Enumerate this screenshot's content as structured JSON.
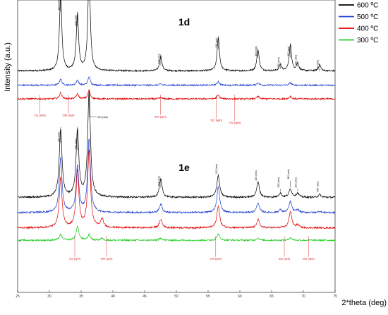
{
  "chart_data": {
    "type": "line",
    "xlabel": "2*theta (deg)",
    "ylabel": "Intensity (a.u.)",
    "xlim": [
      25,
      75
    ],
    "xticks": [
      25,
      30,
      35,
      40,
      45,
      50,
      55,
      60,
      65,
      70,
      75
    ],
    "legend": {
      "placement": "right",
      "entries": [
        {
          "name": "600 ºC",
          "color": "#000000"
        },
        {
          "name": "500 ºC",
          "color": "#1f3fd0"
        },
        {
          "name": "400 ºC",
          "color": "#e00000"
        },
        {
          "name": "300 ºC",
          "color": "#22cc22"
        }
      ]
    },
    "panels": [
      {
        "label": "1d",
        "peak_width": 0.22,
        "series": [
          {
            "name": "600 ºC",
            "color": "#000000",
            "baseline": 0.225,
            "peaks": [
              [
                31.77,
                0.62
              ],
              [
                34.42,
                0.45
              ],
              [
                36.25,
                0.8
              ],
              [
                47.54,
                0.12
              ],
              [
                56.6,
                0.27
              ],
              [
                62.86,
                0.17
              ],
              [
                66.38,
                0.05
              ],
              [
                67.96,
                0.21
              ],
              [
                69.1,
                0.06
              ],
              [
                72.56,
                0.05
              ]
            ]
          },
          {
            "name": "500 ºC",
            "color": "#1f3fd0",
            "baseline": 0.11,
            "peaks": [
              [
                31.77,
                0.05
              ],
              [
                34.42,
                0.04
              ],
              [
                36.25,
                0.07
              ],
              [
                47.54,
                0.01
              ],
              [
                56.6,
                0.03
              ],
              [
                62.86,
                0.02
              ],
              [
                67.96,
                0.02
              ]
            ]
          },
          {
            "name": "400 ºC",
            "color": "#e00000",
            "baseline": 0.0,
            "peaks": [
              [
                31.77,
                0.05
              ],
              [
                34.42,
                0.04
              ],
              [
                36.25,
                0.07
              ],
              [
                47.54,
                0.01
              ],
              [
                56.6,
                0.03
              ],
              [
                62.86,
                0.02
              ],
              [
                67.96,
                0.02
              ]
            ]
          }
        ],
        "annotations": [
          {
            "text": "100 (wiz)",
            "x": 31.77,
            "series": "600 ºC",
            "color": "#000000",
            "level": 0.7
          },
          {
            "text": "002 (wiz)",
            "x": 34.42,
            "series": "600 ºC",
            "color": "#000000",
            "level": 0.58
          },
          {
            "text": "101 (wiz)",
            "x": 36.25,
            "series": "600 ºC",
            "color": "#000000",
            "level": 0.88
          },
          {
            "text": "102 (wiz)",
            "x": 47.54,
            "series": "600 ºC",
            "color": "#000000",
            "level": 0.27
          },
          {
            "text": "110 (wiz)",
            "x": 56.6,
            "series": "600 ºC",
            "color": "#000000",
            "level": 0.4
          },
          {
            "text": "103 (wiz)",
            "x": 62.86,
            "series": "600 ºC",
            "color": "#000000",
            "level": 0.33
          },
          {
            "text": "200 (wiz)",
            "x": 66.38,
            "series": "600 ºC",
            "color": "#000000",
            "level": 0.24
          },
          {
            "text": "112 (wiz)",
            "x": 67.96,
            "series": "600 ºC",
            "color": "#000000",
            "level": 0.33
          },
          {
            "text": "201 (wiz)",
            "x": 69.1,
            "series": "600 ºC",
            "color": "#000000",
            "level": 0.26
          },
          {
            "text": "004 (wiz)",
            "x": 72.56,
            "series": "600 ºC",
            "color": "#000000",
            "level": 0.22
          },
          {
            "text": "111 (sph)",
            "x": 28.5,
            "series": "400 ºC",
            "color": "#d00000",
            "level": -0.14
          },
          {
            "text": "200 (sph)",
            "x": 33.0,
            "series": "400 ºC",
            "color": "#d00000",
            "level": -0.14
          },
          {
            "text": "220 (sph)",
            "x": 47.5,
            "series": "400 ºC",
            "color": "#d00000",
            "level": -0.15
          },
          {
            "text": "311 (sph)",
            "x": 56.3,
            "series": "400 ºC",
            "color": "#d00000",
            "level": -0.18
          },
          {
            "text": "222 (sph)",
            "x": 59.2,
            "series": "400 ºC",
            "color": "#d00000",
            "level": -0.2
          }
        ]
      },
      {
        "label": "1e",
        "peak_width": 0.26,
        "series": [
          {
            "name": "600 ºC",
            "color": "#000000",
            "baseline": 0.36,
            "peaks": [
              [
                31.77,
                0.49
              ],
              [
                34.42,
                0.48
              ],
              [
                36.25,
                0.76
              ],
              [
                47.54,
                0.13
              ],
              [
                56.6,
                0.16
              ],
              [
                62.86,
                0.11
              ],
              [
                66.38,
                0.03
              ],
              [
                67.96,
                0.06
              ],
              [
                69.1,
                0.03
              ],
              [
                72.56,
                0.02
              ]
            ]
          },
          {
            "name": "500 ºC",
            "color": "#1f3fd0",
            "baseline": 0.25,
            "peaks": [
              [
                31.77,
                0.39
              ],
              [
                34.42,
                0.33
              ],
              [
                36.25,
                0.53
              ],
              [
                47.54,
                0.06
              ],
              [
                56.6,
                0.19
              ],
              [
                62.86,
                0.07
              ],
              [
                66.38,
                0.02
              ],
              [
                67.96,
                0.08
              ],
              [
                69.1,
                0.02
              ],
              [
                72.56,
                0.01
              ]
            ]
          },
          {
            "name": "400 ºC",
            "color": "#e00000",
            "baseline": 0.14,
            "peaks": [
              [
                31.77,
                0.36
              ],
              [
                34.42,
                0.41
              ],
              [
                36.25,
                0.56
              ],
              [
                38.3,
                0.06
              ],
              [
                47.54,
                0.06
              ],
              [
                56.6,
                0.16
              ],
              [
                62.86,
                0.06
              ],
              [
                67.96,
                0.12
              ],
              [
                69.1,
                0.02
              ]
            ]
          },
          {
            "name": "300 ºC",
            "color": "#22cc22",
            "baseline": 0.05,
            "peaks": [
              [
                31.77,
                0.04
              ],
              [
                34.42,
                0.1
              ],
              [
                36.25,
                0.04
              ],
              [
                38.3,
                0.015
              ],
              [
                47.54,
                0.015
              ],
              [
                56.6,
                0.045
              ],
              [
                62.86,
                0.015
              ],
              [
                67.96,
                0.02
              ]
            ]
          }
        ],
        "annotations": [
          {
            "text": "100 (wiz)",
            "x": 31.77,
            "series": "600 ºC",
            "color": "#000000",
            "level": 0.75
          },
          {
            "text": "002 (wiz)",
            "x": 34.42,
            "series": "600 ºC",
            "color": "#000000",
            "level": 0.7
          },
          {
            "text": "101 (wiz)",
            "x": 36.25,
            "series": "600 ºC",
            "color": "#000000",
            "level": 0.94
          },
          {
            "text": "102 (wiz)",
            "x": 47.54,
            "series": "600 ºC",
            "color": "#000000",
            "level": 0.43
          },
          {
            "text": "110 (wiz)",
            "x": 56.6,
            "series": "600 ºC",
            "color": "#000000",
            "level": 0.52
          },
          {
            "text": "103 (wiz)",
            "x": 62.86,
            "series": "600 ºC",
            "color": "#000000",
            "level": 0.47
          },
          {
            "text": "200 (wiz)",
            "x": 66.38,
            "series": "600 ºC",
            "color": "#000000",
            "level": 0.42
          },
          {
            "text": "112 (wiz)",
            "x": 67.96,
            "series": "600 ºC",
            "color": "#000000",
            "level": 0.48
          },
          {
            "text": "201 (wiz)",
            "x": 69.1,
            "series": "600 ºC",
            "color": "#000000",
            "level": 0.42
          },
          {
            "text": "004 (wiz)",
            "x": 72.56,
            "series": "600 ºC",
            "color": "#000000",
            "level": 0.39
          },
          {
            "text": "111 (sph)",
            "x": 34.0,
            "series": "300 ºC",
            "color": "#d00000",
            "level": -0.09
          },
          {
            "text": "200 (sph)",
            "x": 39.0,
            "series": "300 ºC",
            "color": "#d00000",
            "level": -0.09
          },
          {
            "text": "220 (sph)",
            "x": 56.2,
            "series": "300 ºC",
            "color": "#d00000",
            "level": -0.09
          },
          {
            "text": "311 (sph)",
            "x": 67.0,
            "series": "300 ºC",
            "color": "#d00000",
            "level": -0.09
          },
          {
            "text": "222 (sph)",
            "x": 70.8,
            "series": "300 ºC",
            "color": "#d00000",
            "level": -0.09
          }
        ]
      }
    ]
  }
}
